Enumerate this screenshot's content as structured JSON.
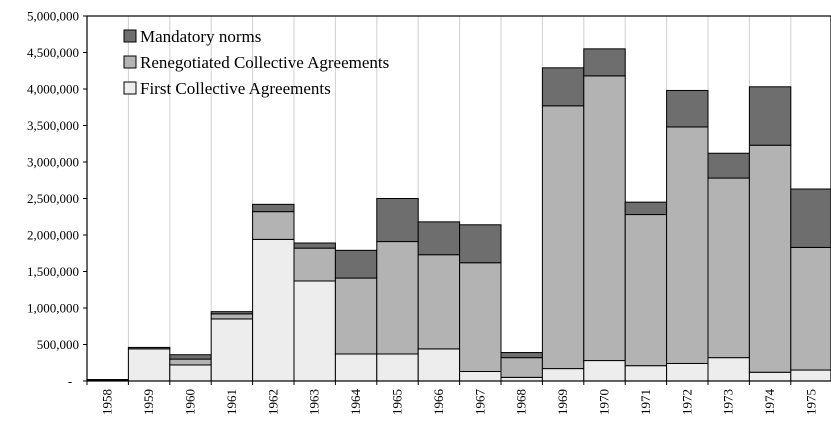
{
  "chart_data": {
    "type": "bar",
    "stacked": true,
    "title": "",
    "xlabel": "",
    "ylabel": "",
    "categories": [
      "1958",
      "1959",
      "1960",
      "1961",
      "1962",
      "1963",
      "1964",
      "1965",
      "1966",
      "1967",
      "1968",
      "1969",
      "1970",
      "1971",
      "1972",
      "1973",
      "1974",
      "1975"
    ],
    "series": [
      {
        "name": "First Collective Agreements",
        "color": "#ededed",
        "values": [
          15000,
          440000,
          220000,
          850000,
          1940000,
          1370000,
          370000,
          370000,
          440000,
          130000,
          50000,
          170000,
          280000,
          210000,
          240000,
          320000,
          120000,
          150000
        ]
      },
      {
        "name": "Renegotiated Collective Agreements",
        "color": "#b3b3b3",
        "values": [
          0,
          0,
          80000,
          70000,
          380000,
          450000,
          1040000,
          1540000,
          1290000,
          1490000,
          270000,
          3600000,
          3900000,
          2070000,
          3240000,
          2460000,
          3110000,
          1680000
        ]
      },
      {
        "name": "Mandatory norms",
        "color": "#6e6e6e",
        "values": [
          5000,
          20000,
          60000,
          30000,
          100000,
          70000,
          380000,
          590000,
          450000,
          520000,
          70000,
          520000,
          370000,
          170000,
          500000,
          340000,
          800000,
          800000
        ]
      }
    ],
    "ylim": [
      0,
      5000000
    ],
    "yticks": [
      0,
      500000,
      1000000,
      1500000,
      2000000,
      2500000,
      3000000,
      3500000,
      4000000,
      4500000,
      5000000
    ],
    "ytick_labels": [
      "-",
      "500,000",
      "1,000,000",
      "1,500,000",
      "2,000,000",
      "2,500,000",
      "3,000,000",
      "3,500,000",
      "4,000,000",
      "4,500,000",
      "5,000,000"
    ],
    "legend": {
      "placement": "top-left",
      "order": [
        "Mandatory norms",
        "Renegotiated Collective Agreements",
        "First Collective Agreements"
      ]
    },
    "grid": {
      "vertical": true,
      "horizontal": false
    }
  }
}
